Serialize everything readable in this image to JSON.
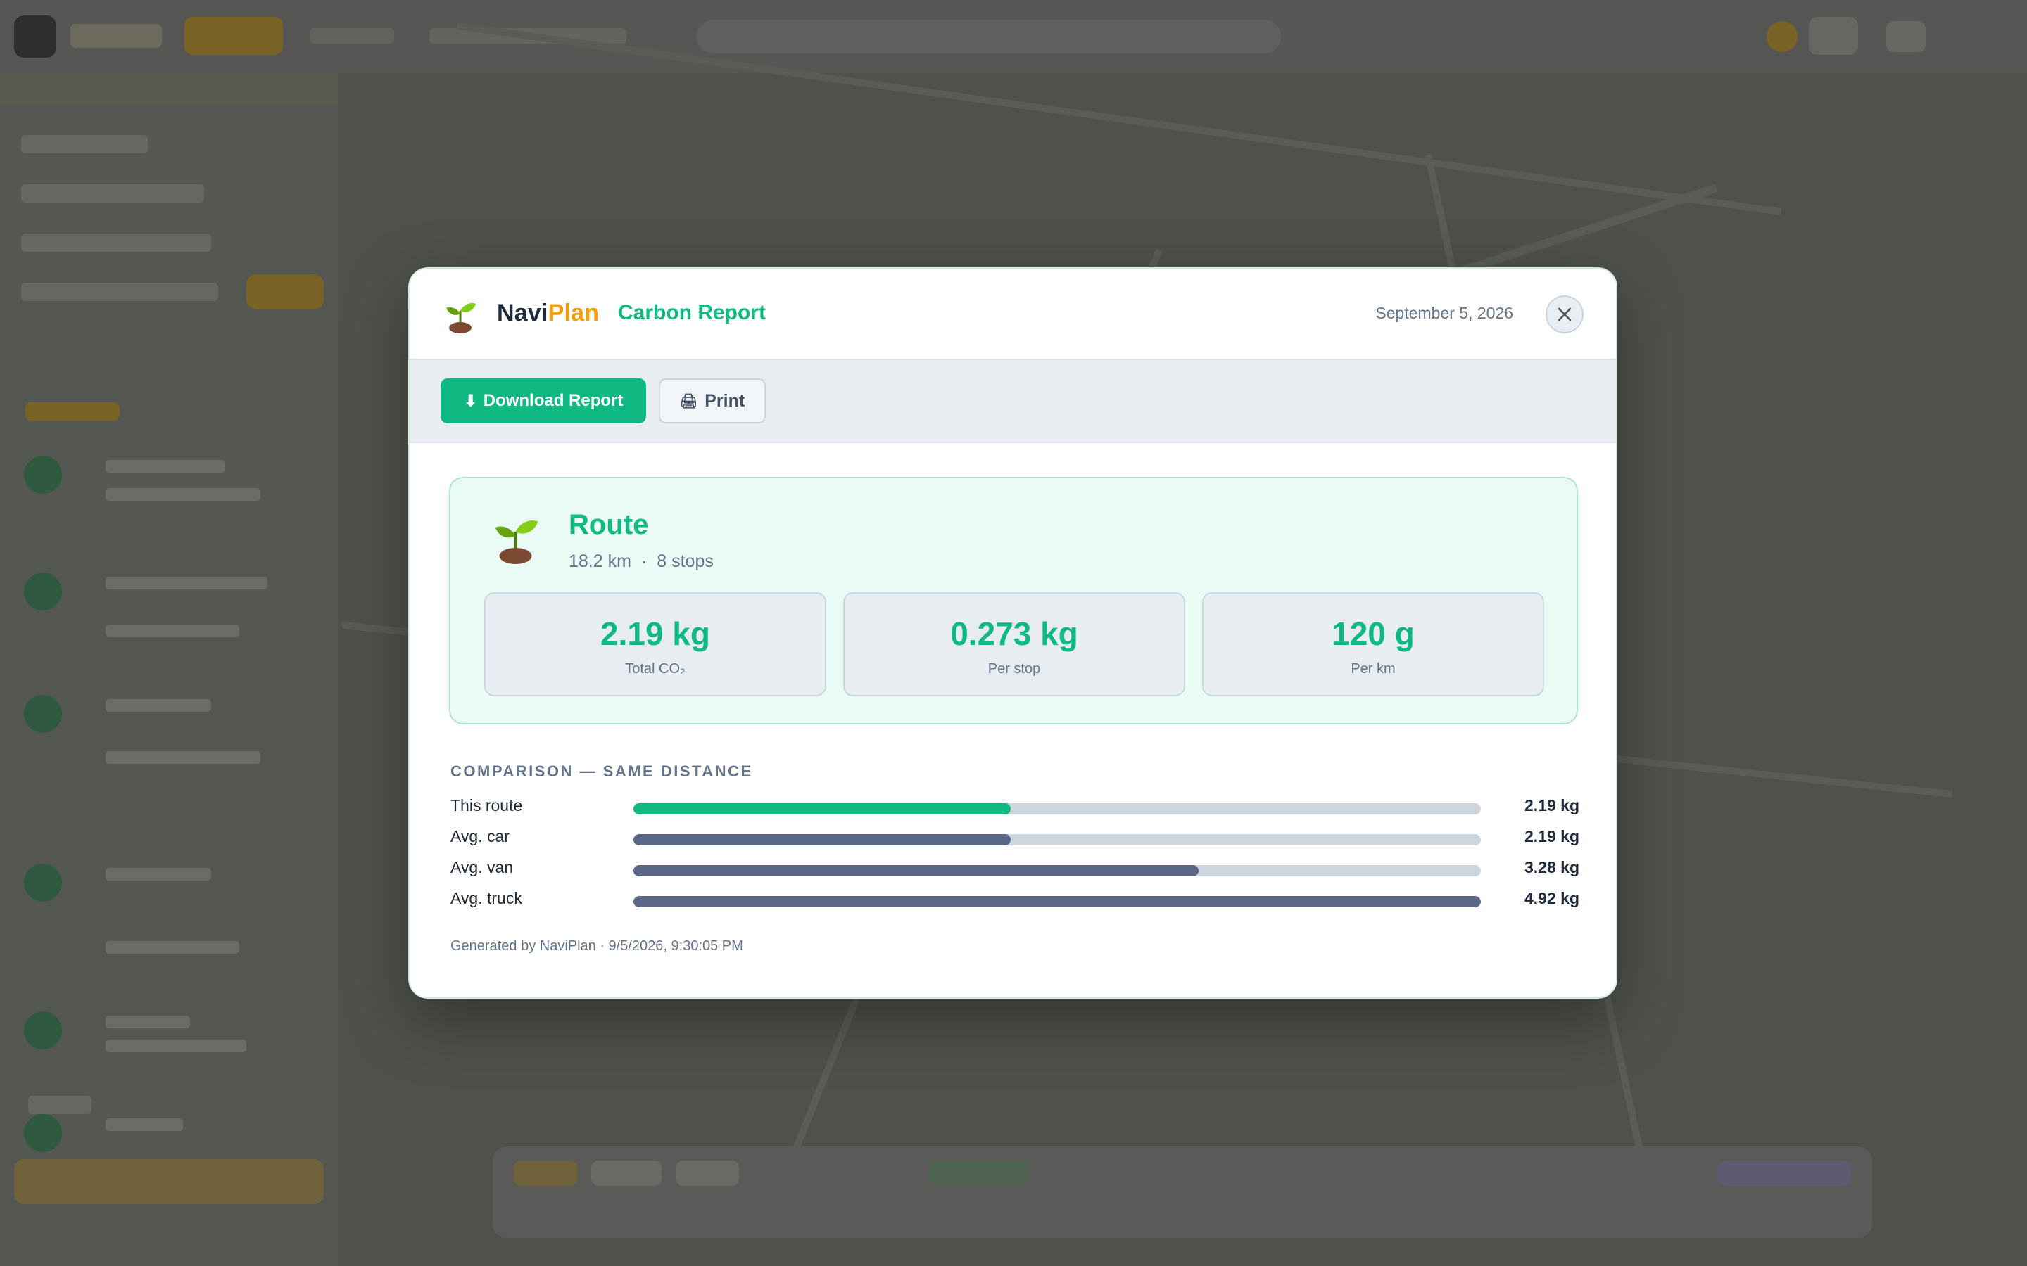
{
  "modal": {
    "brand": {
      "name_part1": "Navi",
      "name_part2": "Plan"
    },
    "title": "Carbon Report",
    "date": "September 5, 2026",
    "close_icon": "close-icon",
    "toolbar": {
      "download_label": "Download Report",
      "download_icon": "⬇",
      "print_label": "Print",
      "print_icon": "🖨"
    },
    "summary": {
      "title": "Route",
      "distance": "18.2 km",
      "separator": "·",
      "stops": "8 stops",
      "icon": "sprout-icon",
      "stats": [
        {
          "value": "2.19 kg",
          "label": "Total CO₂"
        },
        {
          "value": "0.273 kg",
          "label": "Per stop"
        },
        {
          "value": "120 g",
          "label": "Per km"
        }
      ]
    },
    "comparison": {
      "title": "COMPARISON — SAME DISTANCE",
      "max_kg": 4.92,
      "rows": [
        {
          "label": "This route",
          "value_text": "2.19 kg",
          "kg": 2.19,
          "color": "#10b981"
        },
        {
          "label": "Avg. car",
          "value_text": "2.19 kg",
          "kg": 2.19,
          "color": "#5b6786"
        },
        {
          "label": "Avg. van",
          "value_text": "3.28 kg",
          "kg": 3.28,
          "color": "#5b6786"
        },
        {
          "label": "Avg. truck",
          "value_text": "4.92 kg",
          "kg": 4.92,
          "color": "#5b6786"
        }
      ]
    },
    "footer": "Generated by NaviPlan · 9/5/2026, 9:30:05 PM"
  }
}
